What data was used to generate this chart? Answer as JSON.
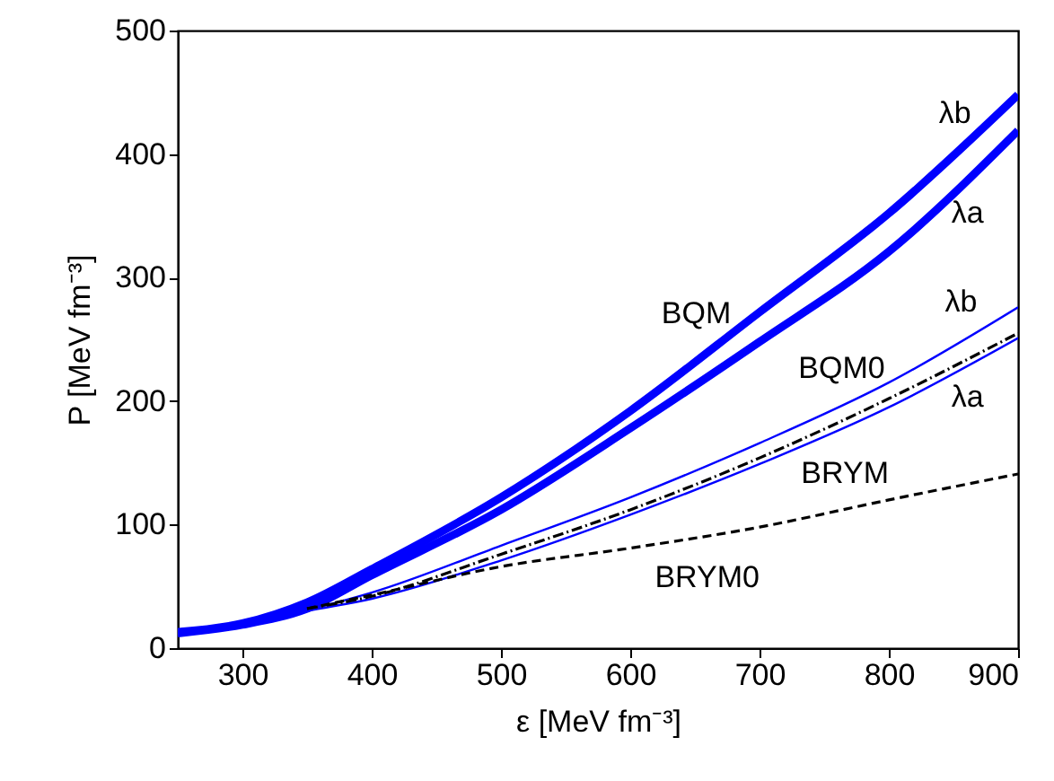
{
  "chart_data": {
    "type": "line",
    "xlabel": "ε [MeV fm⁻³]",
    "ylabel": "P [MeV fm⁻³]",
    "xlim": [
      250,
      900
    ],
    "ylim": [
      0,
      500
    ],
    "xticks": [
      300,
      400,
      500,
      600,
      700,
      800,
      900
    ],
    "yticks": [
      0,
      100,
      200,
      300,
      400,
      500
    ],
    "grid": false,
    "marker": "none",
    "series": [
      {
        "color": "#0000ff",
        "line_style": "solid",
        "x": [
          250,
          300,
          350,
          400,
          500,
          600,
          700,
          800,
          900
        ],
        "values": [
          13,
          20,
          37,
          64,
          122,
          192,
          272,
          352,
          448
        ]
      },
      {
        "color": "#0000ff",
        "line_style": "solid",
        "x": [
          250,
          300,
          350,
          400,
          500,
          600,
          700,
          800,
          900
        ],
        "values": [
          12,
          19,
          32,
          59,
          112,
          178,
          248,
          321,
          419
        ]
      },
      {
        "color": "#0000ff",
        "line_style": "solid",
        "x": [
          250,
          300,
          350,
          400,
          500,
          600,
          700,
          800,
          900
        ],
        "values": [
          12,
          20,
          31,
          45,
          83,
          122,
          166,
          215,
          276
        ]
      },
      {
        "color": "#0000ff",
        "line_style": "solid",
        "x": [
          250,
          300,
          350,
          400,
          500,
          600,
          700,
          800,
          900
        ],
        "values": [
          12,
          19,
          30,
          40,
          71,
          108,
          149,
          195,
          251
        ]
      },
      {
        "color": "#000000",
        "line_style": "dashdot",
        "x": [
          350,
          400,
          500,
          600,
          700,
          800,
          900
        ],
        "values": [
          32,
          42,
          76,
          112,
          154,
          202,
          255
        ]
      },
      {
        "color": "#000000",
        "line_style": "dashed",
        "x": [
          350,
          400,
          500,
          600,
          700,
          800,
          900
        ],
        "values": [
          32,
          43,
          66,
          81,
          98,
          120,
          141
        ]
      }
    ],
    "annotations": [
      "λb",
      "λa",
      "BQM",
      "λb",
      "BQM0",
      "λa",
      "BRYM",
      "BRYM0"
    ]
  }
}
